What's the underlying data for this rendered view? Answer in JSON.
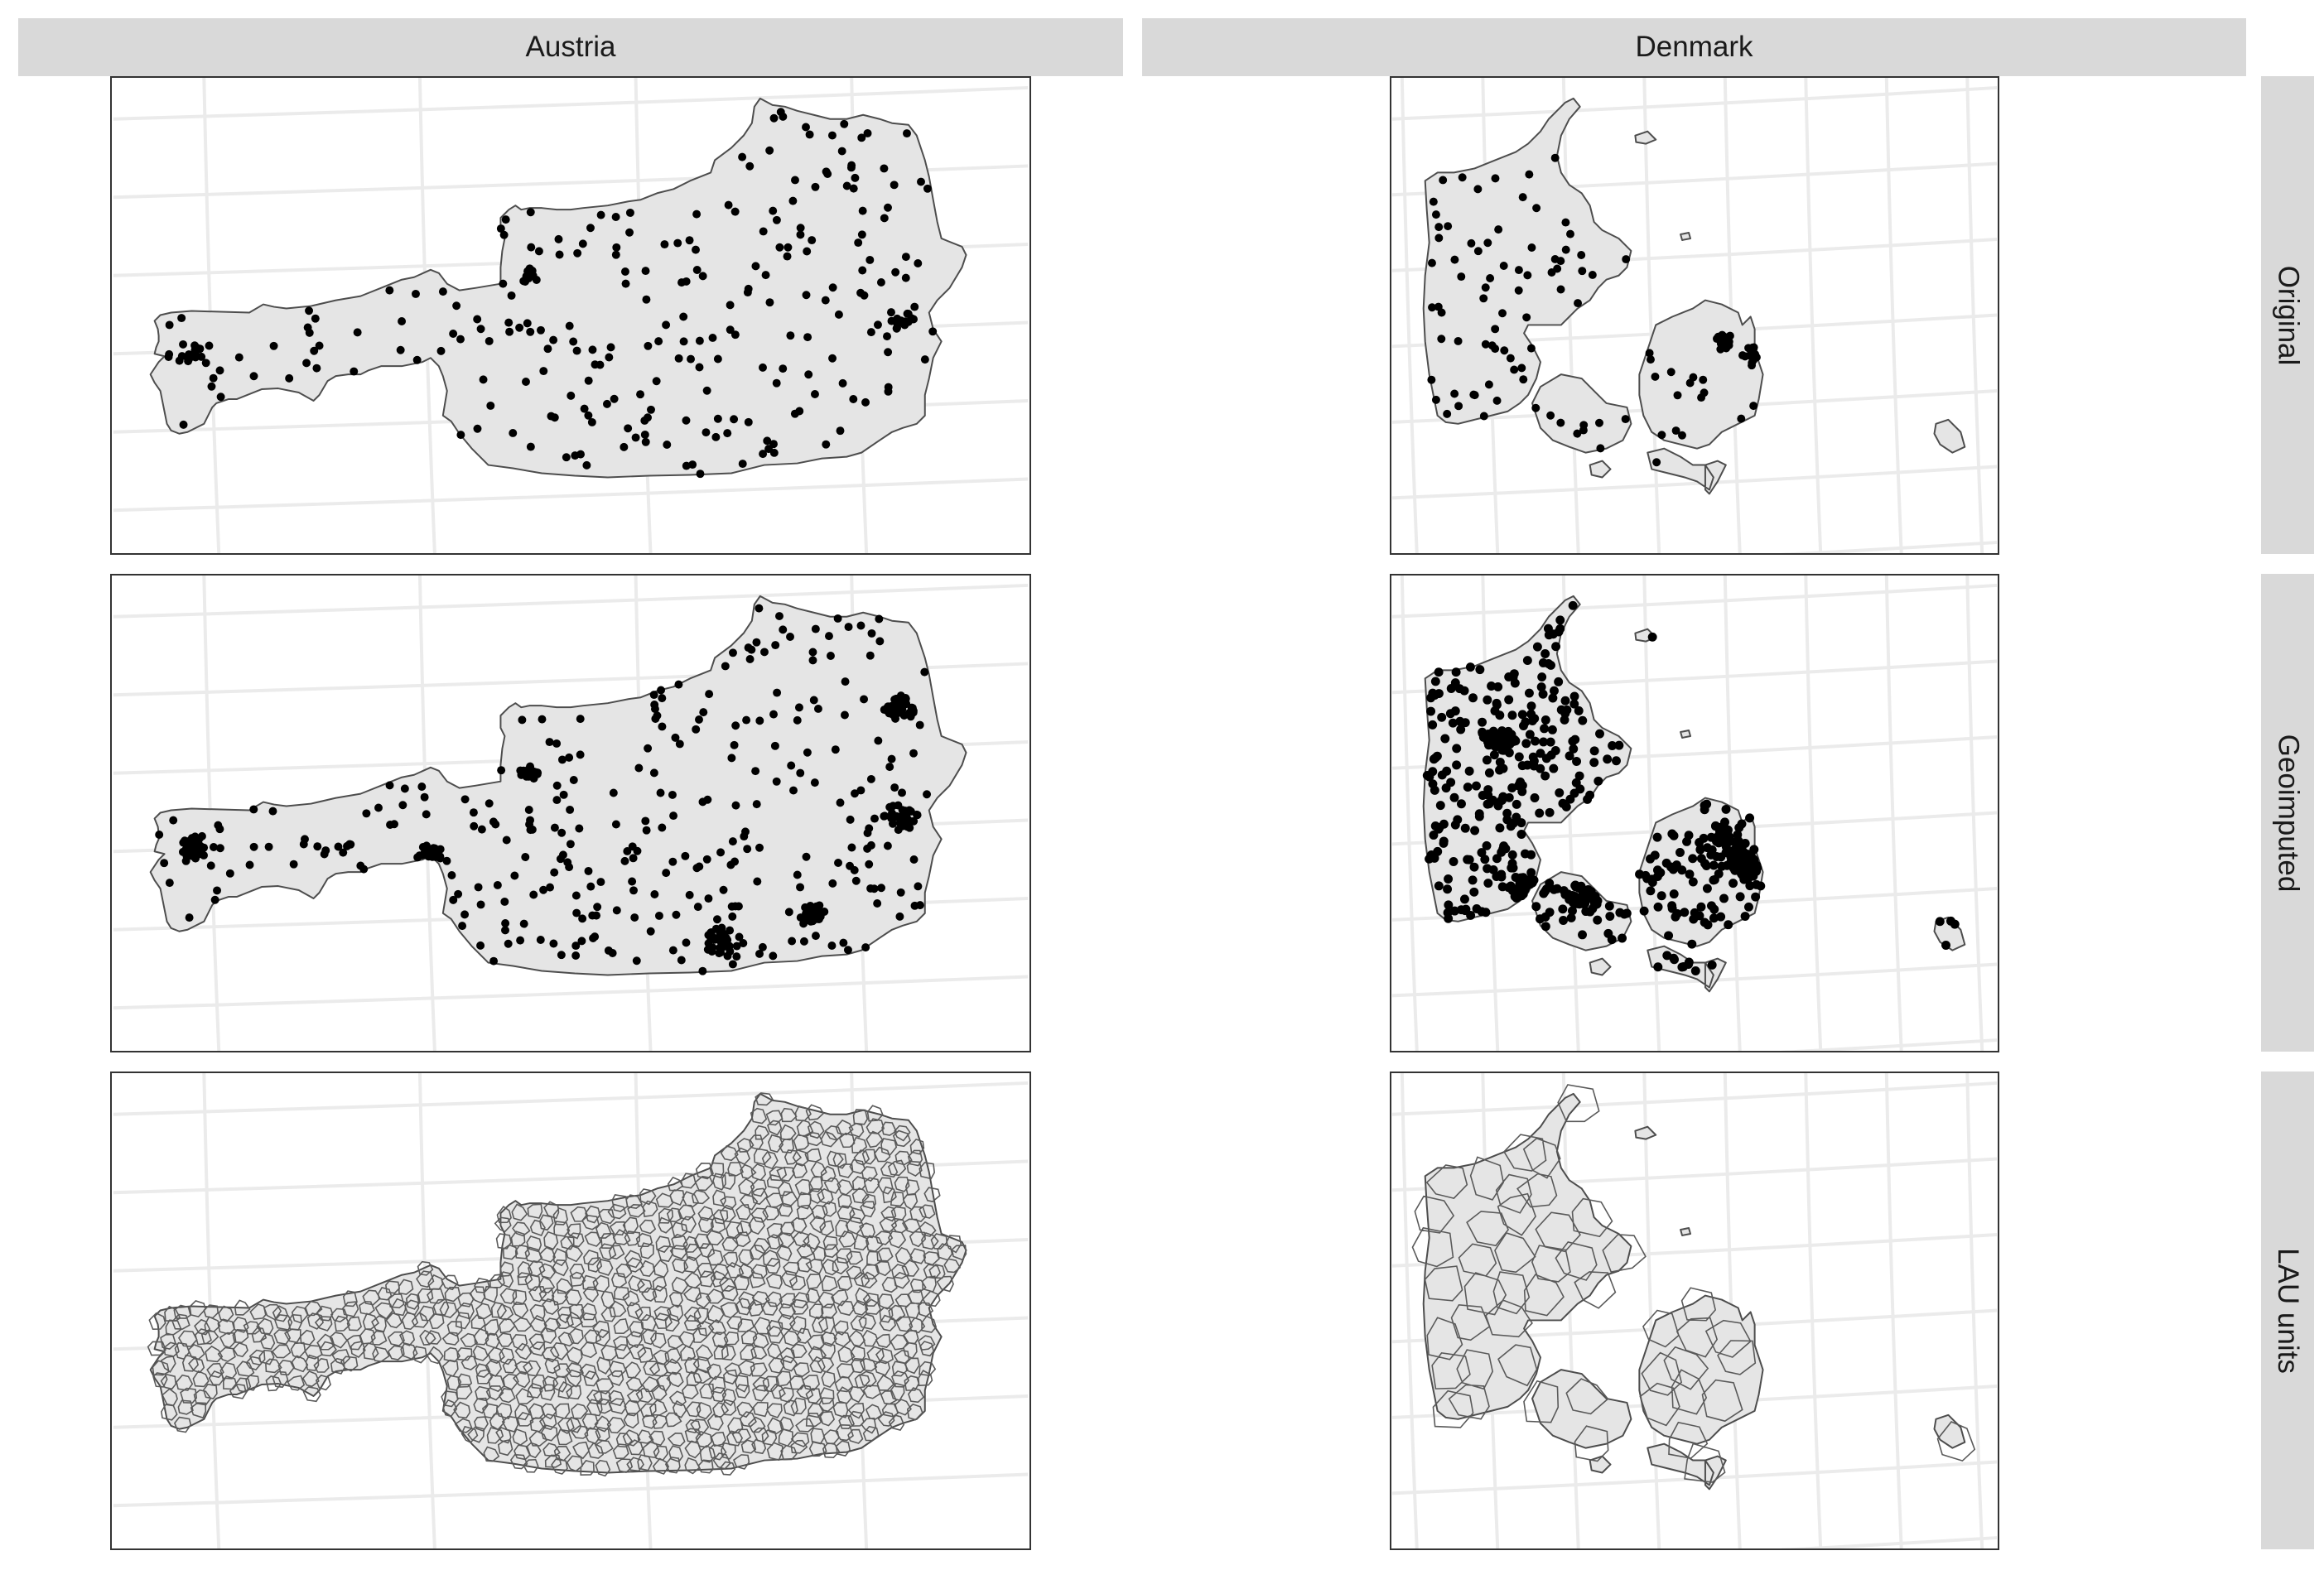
{
  "facets": {
    "columns": [
      "Austria",
      "Denmark"
    ],
    "rows": [
      "Original",
      "Geoimputed",
      "LAU units"
    ]
  },
  "colors": {
    "strip_background": "#d9d9d9",
    "land_fill": "#e5e5e5",
    "border": "#4d4d4d",
    "points": "#000000",
    "graticule": "#ebebeb"
  },
  "chart_data": {
    "type": "map",
    "description_layers": [
      "country polygon",
      "point locations",
      "LAU unit boundaries"
    ],
    "panels": [
      {
        "column": "Austria",
        "row": "Original",
        "layer": "points",
        "point_density": "sparse"
      },
      {
        "column": "Austria",
        "row": "Geoimputed",
        "layer": "points",
        "point_density": "dense"
      },
      {
        "column": "Austria",
        "row": "LAU units",
        "layer": "boundaries"
      },
      {
        "column": "Denmark",
        "row": "Original",
        "layer": "points",
        "point_density": "sparse"
      },
      {
        "column": "Denmark",
        "row": "Geoimputed",
        "layer": "points",
        "point_density": "dense"
      },
      {
        "column": "Denmark",
        "row": "LAU units",
        "layer": "boundaries"
      }
    ]
  }
}
